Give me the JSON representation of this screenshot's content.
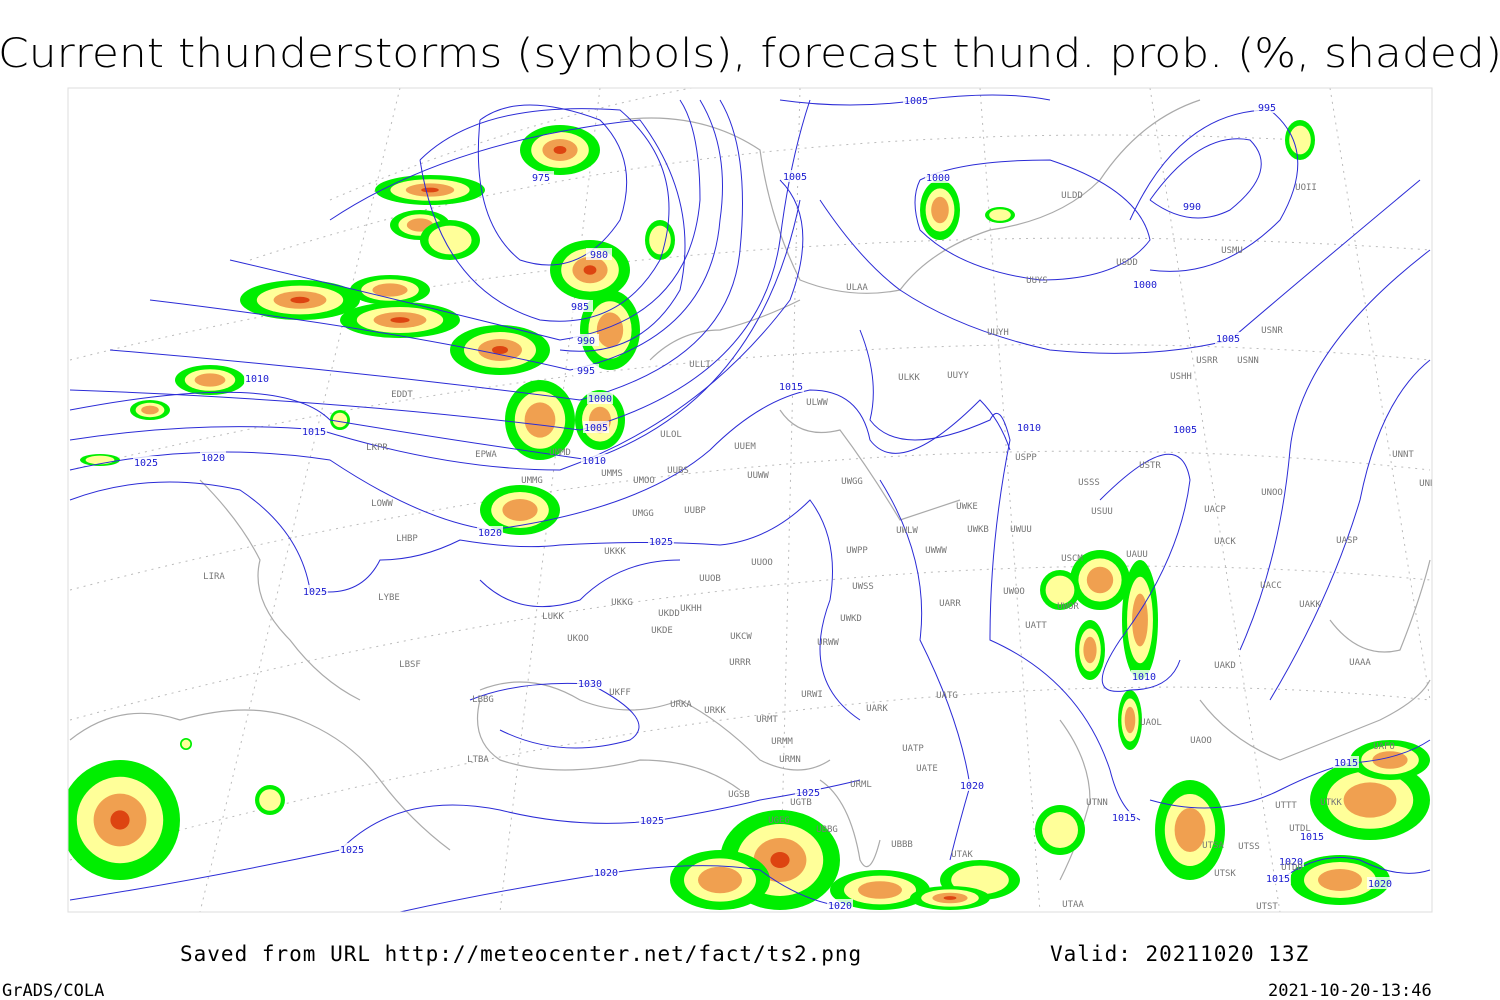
{
  "header": {
    "title": "Current thunderstorms (symbols), forecast thund. prob. (%, shaded)"
  },
  "map": {
    "isobar_labels": [
      "975",
      "980",
      "985",
      "990",
      "995",
      "1000",
      "1005",
      "1010",
      "1020",
      "1010",
      "1015",
      "1020",
      "1025",
      "1025",
      "1005",
      "1005",
      "1015",
      "1025",
      "1030",
      "1025",
      "1025",
      "1025",
      "1020",
      "1020",
      "1020",
      "1015",
      "1010",
      "1010",
      "1005",
      "1000",
      "1000",
      "995",
      "990",
      "1005",
      "1015",
      "1015",
      "1020",
      "1015",
      "1020"
    ],
    "stations": [
      "ULAA",
      "ULLI",
      "ULWW",
      "ULKK",
      "UUYY",
      "UUYH",
      "UUYS",
      "ULOL",
      "UUEM",
      "UUWW",
      "UWGG",
      "UWKE",
      "UWKB",
      "UWUU",
      "UWLW",
      "UWWW",
      "UWPP",
      "UWSS",
      "UARR",
      "UWOO",
      "UATT",
      "UWOR",
      "USCM",
      "UAUU",
      "USUU",
      "USSS",
      "USTR",
      "USPP",
      "USHH",
      "USRR",
      "USNN",
      "USNR",
      "USDD",
      "USMU",
      "ULDD",
      "UOII",
      "UNNT",
      "UNBB",
      "UNOO",
      "UACP",
      "UACK",
      "UASP",
      "UACC",
      "UAKK",
      "UAKD",
      "UAAA",
      "UAOL",
      "UAOO",
      "UATG",
      "UATP",
      "UATE",
      "UARK",
      "URWI",
      "URWW",
      "UWKD",
      "URRR",
      "UKCW",
      "UKDE",
      "UKHH",
      "UKDD",
      "UKKG",
      "UKKK",
      "UUOB",
      "UUOO",
      "UUBP",
      "UMGG",
      "UUBS",
      "UMOO",
      "UMMS",
      "UMMG",
      "UMMD",
      "EPWA",
      "EDDT",
      "LKPR",
      "LOWW",
      "LHBP",
      "LIRA",
      "LYBE",
      "LUKK",
      "UKOO",
      "LBSF",
      "LBBG",
      "UKFF",
      "URKA",
      "URKK",
      "URMT",
      "URMM",
      "URMN",
      "UBBB",
      "UTAK",
      "UTAA",
      "LTBA",
      "UGSB",
      "UGTB",
      "UBBG",
      "UGEG",
      "UTNN",
      "UTSA",
      "UTSS",
      "UTSK",
      "UTST",
      "UTDD",
      "UTDL",
      "UTKK",
      "UTTT",
      "UAFO",
      "URML"
    ]
  },
  "footer": {
    "source": "Saved from URL http://meteocenter.net/fact/ts2.png",
    "valid": "Valid: 20211020 13Z",
    "software": "GrADS/COLA",
    "timestamp": "2021-10-20-13:46"
  }
}
